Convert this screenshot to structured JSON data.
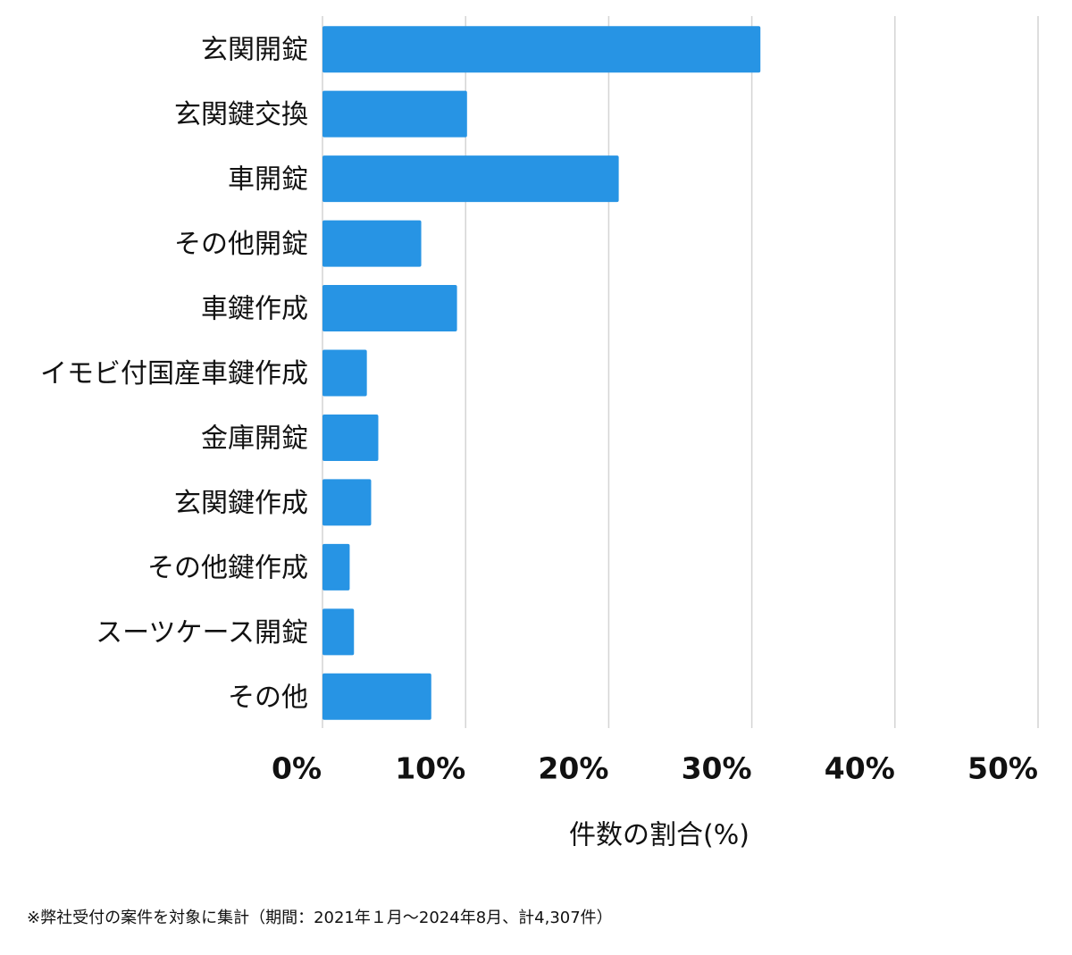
{
  "chart_data": {
    "type": "barh",
    "categories": [
      "玄関開錠",
      "玄関鍵交換",
      "車開錠",
      "その他開錠",
      "車鍵作成",
      "イモビ付国産車鍵作成",
      "金庫開錠",
      "玄関鍵作成",
      "その他鍵作成",
      "スーツケース開錠",
      "その他"
    ],
    "values": [
      30.6,
      10.1,
      20.7,
      6.9,
      9.4,
      3.1,
      3.9,
      3.4,
      1.9,
      2.2,
      7.6
    ],
    "color": "#2794e4",
    "xlim": [
      0,
      50
    ],
    "xticks": [
      {
        "value": 0,
        "label": "0%"
      },
      {
        "value": 10,
        "label": "10%"
      },
      {
        "value": 20,
        "label": "20%"
      },
      {
        "value": 30,
        "label": "30%"
      },
      {
        "value": 40,
        "label": "40%"
      },
      {
        "value": 50,
        "label": "50%"
      }
    ],
    "xlabel": "件数の割合(%)",
    "grid": true,
    "note": "※弊社受付の案件を対象に集計（期間：2021年１月〜2024年8月、計4,307件）"
  }
}
